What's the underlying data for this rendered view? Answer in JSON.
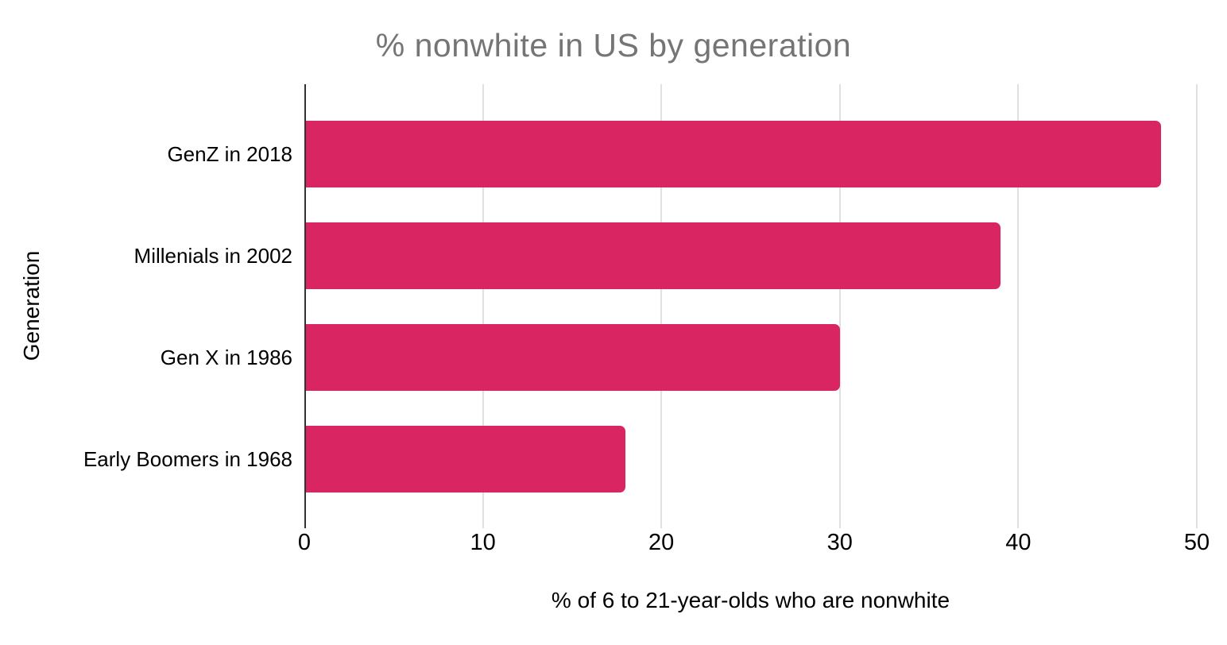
{
  "chart_data": {
    "type": "bar",
    "orientation": "horizontal",
    "title": "% nonwhite in US by generation",
    "categories": [
      "GenZ in 2018",
      "Millenials in 2002",
      "Gen X in 1986",
      "Early Boomers in 1968"
    ],
    "values": [
      48,
      39,
      30,
      18
    ],
    "xlabel": "% of 6 to 21-year-olds who are nonwhite",
    "ylabel": "Generation",
    "xlim": [
      0,
      50
    ],
    "xticks": [
      0,
      10,
      20,
      30,
      40,
      50
    ],
    "grid": true,
    "legend": "none",
    "colors": {
      "bar": "#D92663",
      "title_text": "#757575",
      "axis_text": "#000000",
      "gridline": "#E0E0E0",
      "axis_line": "#333333",
      "background": "#FFFFFF"
    }
  }
}
